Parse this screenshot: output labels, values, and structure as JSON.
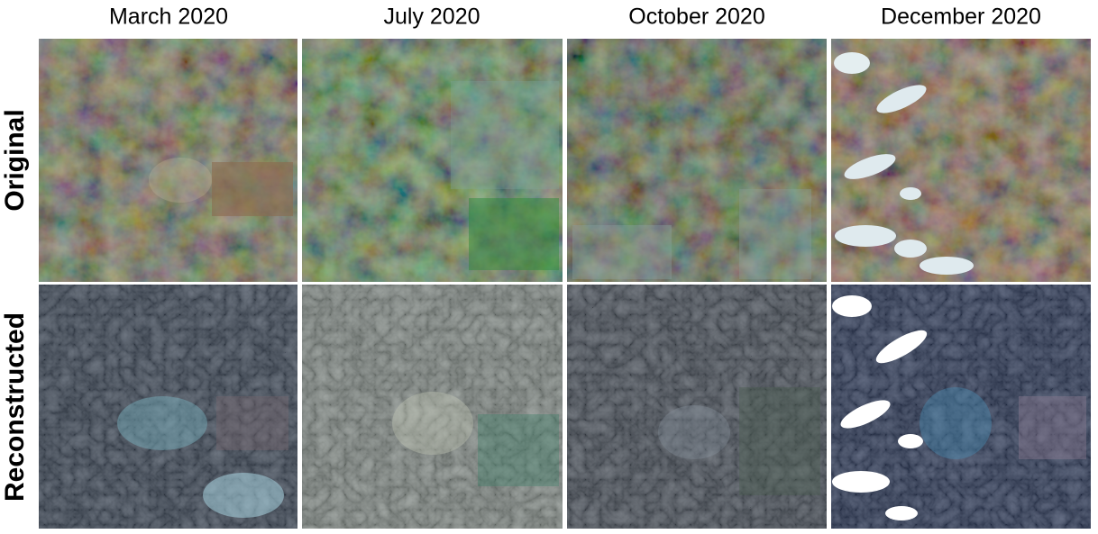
{
  "columns": [
    "March 2020",
    "July 2020",
    "October 2020",
    "December 2020"
  ],
  "rows": [
    "Original",
    "Reconstructed"
  ]
}
